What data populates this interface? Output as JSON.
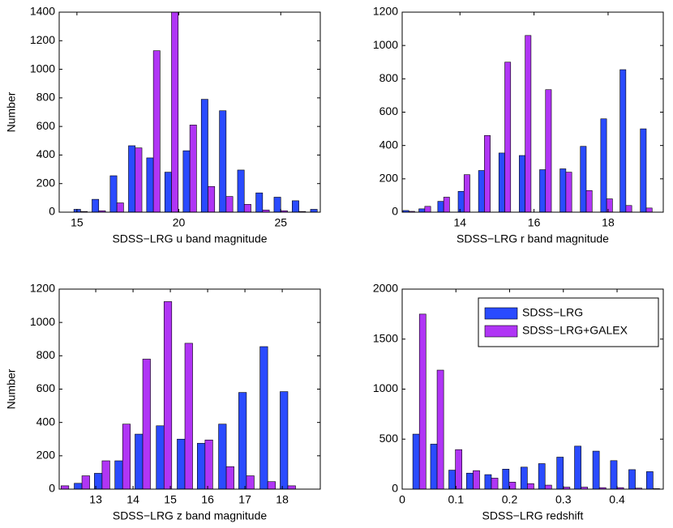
{
  "chart_data": [
    {
      "type": "bar",
      "xlabel": "SDSS−LRG u band magnitude",
      "ylabel": "Number",
      "x": [
        15.18,
        16.07,
        16.96,
        17.86,
        18.75,
        19.64,
        20.54,
        21.43,
        22.32,
        23.21,
        24.11,
        25.0,
        25.89,
        26.79
      ],
      "series": [
        {
          "color": "#2a4bff",
          "values": [
            20,
            90,
            255,
            465,
            380,
            280,
            430,
            790,
            710,
            295,
            135,
            105,
            80,
            20
          ]
        },
        {
          "color": "#b035f5",
          "values": [
            5,
            10,
            65,
            450,
            1130,
            1400,
            610,
            180,
            110,
            55,
            15,
            10,
            5,
            0
          ]
        }
      ],
      "xlim": [
        14.13,
        26.94
      ],
      "xticks": [
        15,
        20,
        25
      ],
      "ylim": [
        0,
        1400
      ],
      "yticks": [
        0,
        200,
        400,
        600,
        800,
        1000,
        1200,
        1400
      ]
    },
    {
      "type": "bar",
      "xlabel": "SDSS−LRG r band magnitude",
      "x": [
        12.62,
        13.05,
        13.56,
        14.11,
        14.66,
        15.21,
        15.76,
        16.31,
        16.86,
        17.41,
        17.96,
        18.48,
        19.03
      ],
      "series": [
        {
          "color": "#2a4bff",
          "values": [
            10,
            20,
            65,
            125,
            250,
            355,
            340,
            255,
            260,
            395,
            560,
            855,
            500
          ]
        },
        {
          "color": "#b035f5",
          "values": [
            5,
            35,
            90,
            225,
            460,
            900,
            1060,
            735,
            240,
            130,
            80,
            40,
            25
          ]
        }
      ],
      "xlim": [
        12.44,
        19.49
      ],
      "xticks": [
        14,
        16,
        18
      ],
      "ylim": [
        0,
        1200
      ],
      "yticks": [
        0,
        200,
        400,
        600,
        800,
        1000,
        1200
      ]
    },
    {
      "type": "bar",
      "xlabel": "SDSS−LRG z band magnitude",
      "ylabel": "Number",
      "x": [
        12.07,
        12.63,
        13.17,
        13.72,
        14.26,
        14.83,
        15.39,
        15.93,
        16.5,
        17.04,
        17.61,
        18.15
      ],
      "series": [
        {
          "color": "#2a4bff",
          "values": [
            0,
            35,
            95,
            170,
            330,
            380,
            300,
            275,
            390,
            580,
            855,
            585
          ]
        },
        {
          "color": "#b035f5",
          "values": [
            20,
            80,
            170,
            390,
            780,
            1125,
            875,
            295,
            135,
            80,
            45,
            20
          ]
        }
      ],
      "xlim": [
        12.02,
        19.02
      ],
      "xticks": [
        13,
        14,
        15,
        16,
        17,
        18
      ],
      "ylim": [
        0,
        1200
      ],
      "yticks": [
        0,
        200,
        400,
        600,
        800,
        1000,
        1200
      ]
    },
    {
      "type": "bar",
      "xlabel": "SDSS−LRG redshift",
      "legend": "upper right",
      "x": [
        0.032,
        0.065,
        0.099,
        0.132,
        0.166,
        0.199,
        0.233,
        0.266,
        0.3,
        0.333,
        0.367,
        0.4,
        0.434,
        0.467
      ],
      "series": [
        {
          "name": "SDSS−LRG",
          "color": "#2a4bff",
          "values": [
            550,
            450,
            190,
            160,
            145,
            200,
            220,
            255,
            320,
            430,
            380,
            285,
            195,
            175
          ]
        },
        {
          "name": "SDSS−LRG+GALEX",
          "color": "#b035f5",
          "values": [
            1750,
            1190,
            395,
            185,
            110,
            70,
            55,
            40,
            20,
            20,
            15,
            15,
            10,
            5
          ]
        }
      ],
      "xlim": [
        0,
        0.486
      ],
      "xticks": [
        0,
        0.1,
        0.2,
        0.3,
        0.4
      ],
      "ylim": [
        0,
        2000
      ],
      "yticks": [
        0,
        500,
        1000,
        1500,
        2000
      ]
    }
  ]
}
